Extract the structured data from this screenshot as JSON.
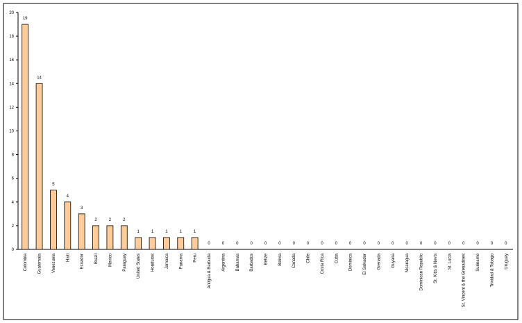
{
  "chart_data": {
    "type": "bar",
    "categories": [
      "Colombia",
      "Guatemala",
      "Venezuela",
      "Haiti",
      "Ecuador",
      "Brazil",
      "Mexico",
      "Paraguay",
      "United States",
      "Honduras",
      "Jamaica",
      "Panama",
      "Peru",
      "Antigua & Barbuda",
      "Argentina",
      "Bahamas",
      "Barbados",
      "Belize",
      "Bolivia",
      "Canada",
      "Chile",
      "Costa Rica",
      "Cuba",
      "Dominica",
      "El Salvador",
      "Grenada",
      "Guyana",
      "Nicaragua",
      "Dominican Republic",
      "St. Kitts & Nevis",
      "St. Lucia",
      "St. Vincent & the Grenadines",
      "Suriname",
      "Trinidad & Tobago",
      "Uruguay"
    ],
    "values": [
      19,
      14,
      5,
      4,
      3,
      2,
      2,
      2,
      1,
      1,
      1,
      1,
      1,
      0,
      0,
      0,
      0,
      0,
      0,
      0,
      0,
      0,
      0,
      0,
      0,
      0,
      0,
      0,
      0,
      0,
      0,
      0,
      0,
      0,
      0
    ],
    "color": "#ffcc99",
    "ylim": [
      0,
      20
    ],
    "yticks": [
      0,
      2,
      4,
      6,
      8,
      10,
      12,
      14,
      16,
      18,
      20
    ],
    "grid": false
  }
}
